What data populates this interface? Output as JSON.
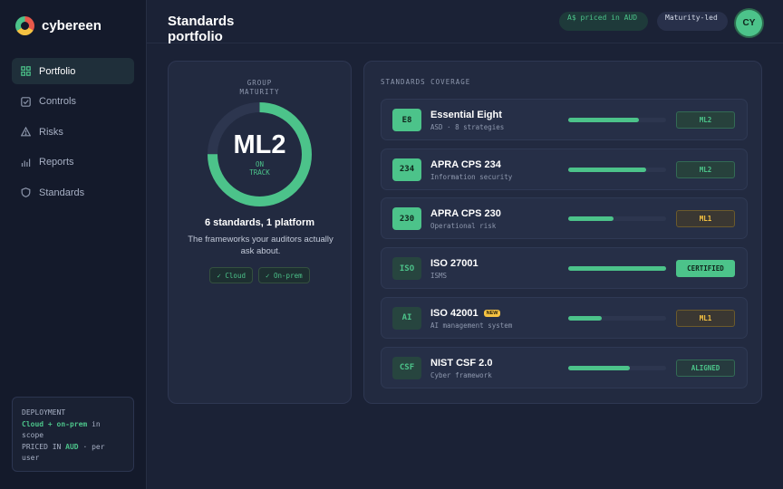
{
  "app": {
    "name": "cybereen"
  },
  "sidebar": {
    "items": [
      {
        "label": "Portfolio",
        "icon": "grid-icon",
        "active": true
      },
      {
        "label": "Controls",
        "icon": "checkbox-icon",
        "active": false
      },
      {
        "label": "Risks",
        "icon": "warning-icon",
        "active": false
      },
      {
        "label": "Reports",
        "icon": "bar-chart-icon",
        "active": false
      },
      {
        "label": "Standards",
        "icon": "shield-icon",
        "active": false
      }
    ],
    "deployment": {
      "heading": "DEPLOYMENT",
      "value": "Cloud + on-prem",
      "value_suffix": " in scope",
      "priced_prefix": "PRICED IN ",
      "currency": "AUD",
      "priced_suffix": " · per user"
    }
  },
  "header": {
    "title": "Standards portfolio",
    "pill_aud": "A$ priced in AUD",
    "pill_maturity": "Maturity-led",
    "avatar": "CY"
  },
  "maturity": {
    "label": "GROUP MATURITY",
    "value": "ML2",
    "status": "ON TRACK",
    "progress": 0.75,
    "headline": "6 standards, 1 platform",
    "subtext": "The frameworks your auditors actually ask about.",
    "chips": [
      "✓ Cloud",
      "✓ On-prem"
    ]
  },
  "coverage": {
    "label": "STANDARDS COVERAGE",
    "rows": [
      {
        "code": "E8",
        "name": "Essential Eight",
        "desc": "ASD · 8 strategies",
        "progress": 0.72,
        "status": "ML2",
        "status_kind": "ml2",
        "code_style": "on",
        "badge": ""
      },
      {
        "code": "234",
        "name": "APRA CPS 234",
        "desc": "Information security",
        "progress": 0.8,
        "status": "ML2",
        "status_kind": "ml2",
        "code_style": "on",
        "badge": ""
      },
      {
        "code": "230",
        "name": "APRA CPS 230",
        "desc": "Operational risk",
        "progress": 0.46,
        "status": "ML1",
        "status_kind": "ml1",
        "code_style": "on",
        "badge": ""
      },
      {
        "code": "ISO",
        "name": "ISO 27001",
        "desc": "ISMS",
        "progress": 1.0,
        "status": "CERTIFIED",
        "status_kind": "cert",
        "code_style": "off",
        "badge": ""
      },
      {
        "code": "AI",
        "name": "ISO 42001",
        "desc": "AI management system",
        "progress": 0.34,
        "status": "ML1",
        "status_kind": "ml1",
        "code_style": "off",
        "badge": "NEW"
      },
      {
        "code": "CSF",
        "name": "NIST CSF 2.0",
        "desc": "Cyber framework",
        "progress": 0.63,
        "status": "ALIGNED",
        "status_kind": "aligned",
        "code_style": "off",
        "badge": ""
      }
    ]
  },
  "colors": {
    "accent": "#4cc38a",
    "warning": "#f5c242",
    "background": "#1b2236"
  }
}
